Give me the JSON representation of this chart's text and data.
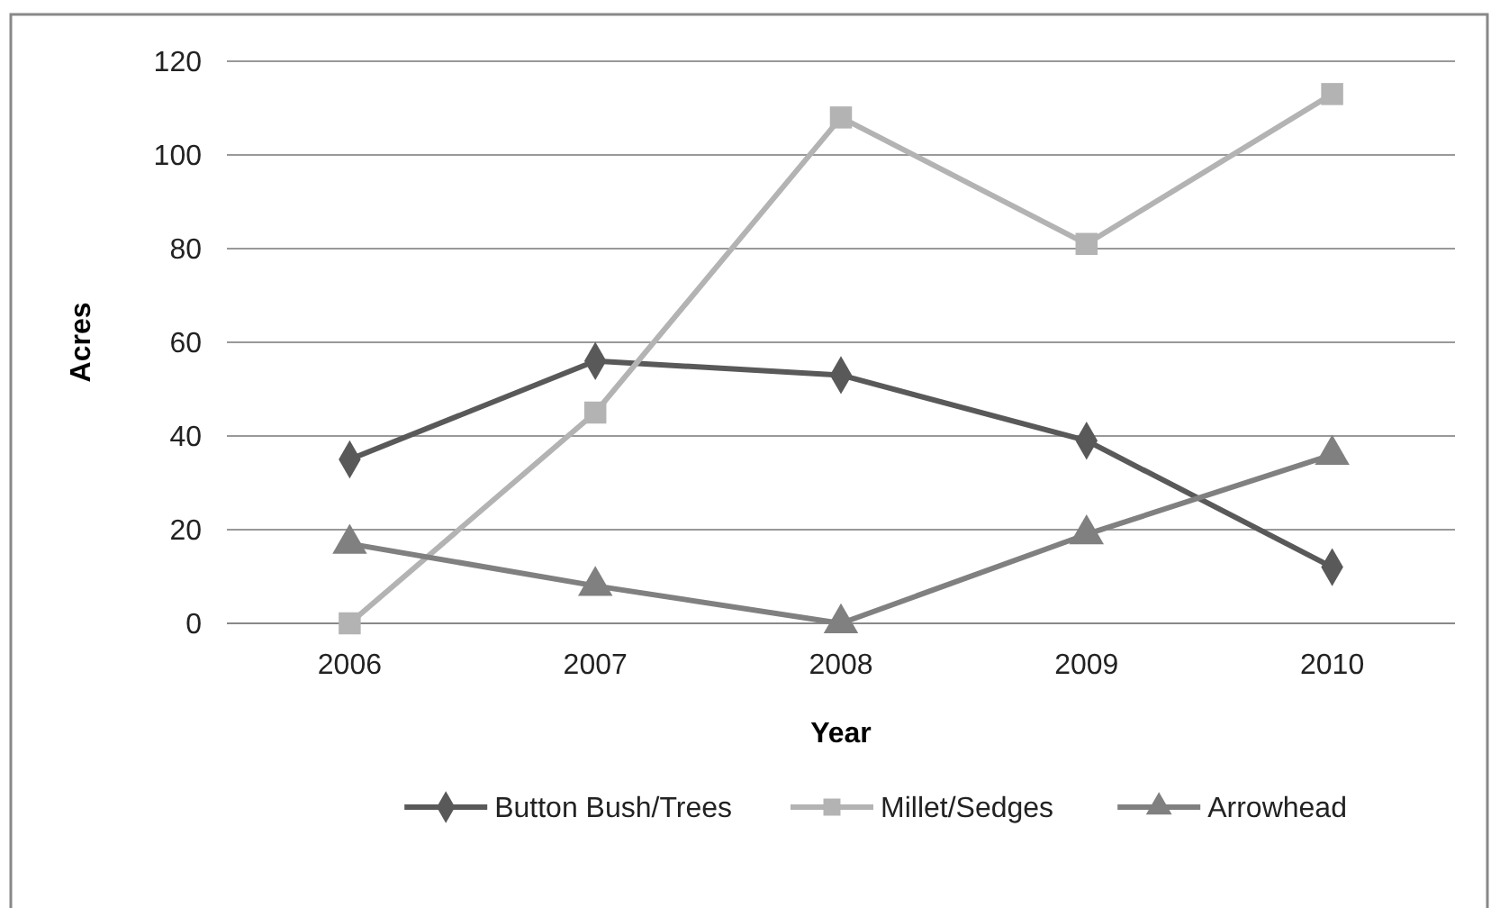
{
  "chart_data": {
    "type": "line",
    "xlabel": "Year",
    "ylabel": "Acres",
    "categories": [
      "2006",
      "2007",
      "2008",
      "2009",
      "2010"
    ],
    "series": [
      {
        "name": "Button Bush/Trees",
        "color": "#595959",
        "marker": "diamond",
        "values": [
          35,
          56,
          53,
          39,
          12
        ]
      },
      {
        "name": "Millet/Sedges",
        "color": "#b3b3b3",
        "marker": "square",
        "values": [
          0,
          45,
          108,
          81,
          113
        ]
      },
      {
        "name": "Arrowhead",
        "color": "#808080",
        "marker": "triangle",
        "values": [
          17,
          8,
          0,
          19,
          36
        ]
      }
    ],
    "ylim": [
      0,
      120
    ],
    "yticks": [
      0,
      20,
      40,
      60,
      80,
      100,
      120
    ],
    "grid": "y",
    "legend": "bottom"
  }
}
